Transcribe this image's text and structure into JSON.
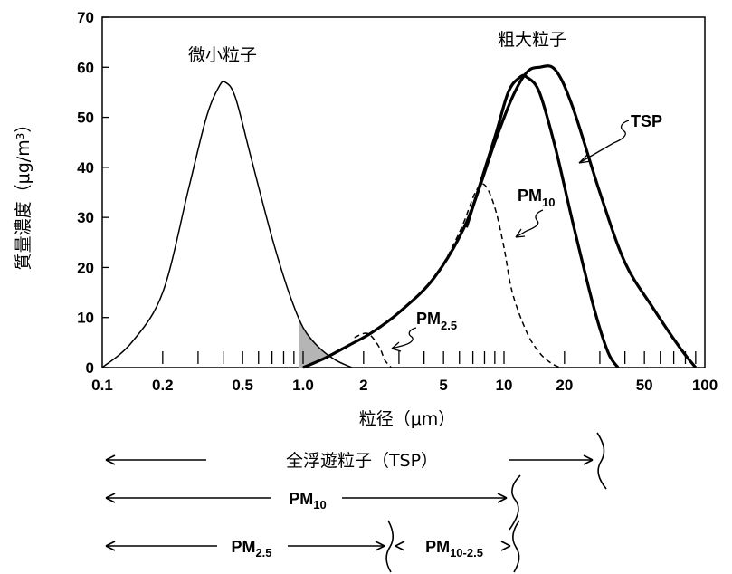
{
  "chart_data": {
    "type": "line",
    "xlabel": "粒径（μm）",
    "ylabel": "質量濃度（μg/m³）",
    "x_scale": "log",
    "xlim": [
      0.1,
      100
    ],
    "ylim": [
      0,
      70
    ],
    "x_ticks": [
      0.1,
      0.2,
      0.5,
      1.0,
      2,
      5,
      10,
      20,
      50,
      100
    ],
    "x_tick_labels": [
      "0.1",
      "0.2",
      "0.5",
      "1.0",
      "2",
      "5",
      "10",
      "20",
      "50",
      "100"
    ],
    "y_ticks": [
      0,
      10,
      20,
      30,
      40,
      50,
      60,
      70
    ],
    "y_tick_labels": [
      "0",
      "10",
      "20",
      "30",
      "40",
      "50",
      "60",
      "70"
    ],
    "grid": false,
    "series": [
      {
        "name": "微小粒子",
        "style": "thin-solid",
        "x": [
          0.1,
          0.14,
          0.2,
          0.27,
          0.33,
          0.38,
          0.41,
          0.46,
          0.55,
          0.7,
          0.85,
          1.0,
          1.2,
          1.45,
          1.75
        ],
        "y": [
          0,
          5,
          15,
          36,
          50,
          56,
          57,
          54,
          42,
          26,
          15,
          8,
          4,
          1.5,
          0
        ]
      },
      {
        "name": "TSP",
        "style": "thick-solid",
        "x": [
          1.0,
          1.3,
          1.7,
          2.2,
          3,
          4.5,
          6.5,
          9,
          11,
          13,
          15,
          18,
          22,
          30,
          40,
          55,
          75,
          90
        ],
        "y": [
          0,
          2,
          4.5,
          7,
          11,
          18,
          29,
          45,
          54,
          59,
          60,
          59.5,
          52,
          35,
          21,
          12,
          4,
          0
        ]
      },
      {
        "name": "粗大粒子",
        "style": "thick-solid",
        "x": [
          6.5,
          9,
          10.5,
          12,
          13,
          15,
          18,
          22,
          28,
          33,
          37
        ],
        "y": [
          28,
          46,
          55,
          58,
          58,
          55,
          44,
          29,
          12,
          3,
          0
        ]
      },
      {
        "name": "PM10",
        "style": "dashed",
        "x": [
          2.2,
          3,
          4.5,
          6,
          7.2,
          8,
          9,
          10,
          11,
          13,
          15,
          17,
          19
        ],
        "y": [
          7,
          11,
          18,
          27,
          35,
          36.5,
          32,
          24,
          15,
          7,
          3,
          1,
          0
        ]
      },
      {
        "name": "PM2.5",
        "style": "dashed",
        "x": [
          1.8,
          2.1,
          2.4,
          2.55,
          2.75
        ],
        "y": [
          6,
          6.8,
          4,
          1.5,
          0
        ]
      }
    ],
    "annotations": [
      "微小粒子",
      "粗大粒子",
      "TSP",
      "PM10",
      "PM2.5"
    ]
  },
  "labels": {
    "fine": "微小粒子",
    "coarse": "粗大粒子",
    "tsp": "TSP",
    "pm10_base": "PM",
    "pm10_sub": "10",
    "pm25_base": "PM",
    "pm25_sub": "2.5"
  },
  "ranges": {
    "tsp_label": "全浮遊粒子（TSP）",
    "pm10_base": "PM",
    "pm10_sub": "10",
    "pm25_base": "PM",
    "pm25_sub": "2.5",
    "pm1025_base": "PM",
    "pm1025_sub": "10-2.5"
  },
  "colors": {
    "line": "#000000",
    "shade": "#b5b5b5"
  }
}
